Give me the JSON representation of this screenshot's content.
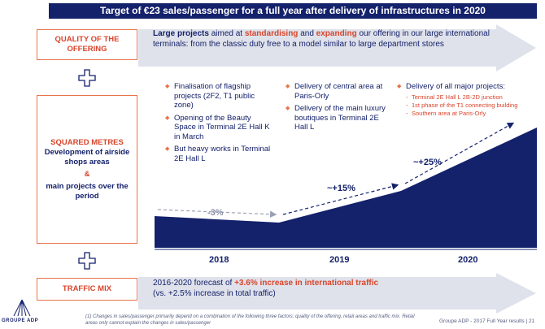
{
  "banner": {
    "title": "Target of €23 sales/passenger for a full year after delivery of infrastructures in 2020"
  },
  "quality": {
    "label": "QUALITY OF THE OFFERING",
    "text_1_bold": "Large projects",
    "text_2": " aimed at ",
    "text_3_red": "standardising",
    "text_4": " and ",
    "text_5_red": "expanding",
    "text_6": " our offering in our large international terminals: from the classic duty free to a model similar to large department stores"
  },
  "squared": {
    "label_red": "SQUARED METRES",
    "label_line2": "Development of airside shops areas",
    "label_amp": "&",
    "label_line3": "main projects over the period"
  },
  "col2018": {
    "items": [
      "Finalisation of flagship projects (2F2, T1 public zone)",
      "Opening of the Beauty Space in Terminal 2E Hall K in March",
      "But heavy works in Terminal 2E Hall L"
    ]
  },
  "col2019": {
    "items": [
      "Delivery of central area at Paris-Orly",
      "Delivery of the main luxury boutiques in Terminal 2E Hall L"
    ]
  },
  "col2020": {
    "main": "Delivery of all major projects:",
    "sub": [
      "Terminal 2E Hall L 2B-2D junction",
      "1st phase of the T1 connecting building",
      "Southern area at Paris-Orly"
    ]
  },
  "chart_data": {
    "type": "area",
    "categories": [
      "2018",
      "2019",
      "2020"
    ],
    "annotations": [
      "-3%",
      "~+15%",
      "~+25%"
    ],
    "title": "",
    "colors": {
      "area": "#14216b",
      "arrow": "#14216b",
      "grey_arrow": "#9aa0b4"
    }
  },
  "traffic": {
    "label": "TRAFFIC MIX",
    "text_1": "2016-2020 forecast of ",
    "text_2_red": "+3.6% increase in international traffic",
    "text_3": "(vs. +2.5% increase in total traffic)"
  },
  "footer": {
    "footnote": "(1) Changes in sales/passenger primarily depend on a combination of the following three factors: quality of the offering, retail areas and traffic mix. Retail areas only cannot explain the changes in sales/passenger",
    "right": "Groupe ADP - 2017 Full Year results | 21",
    "logo": "GROUPE ADP"
  },
  "colors": {
    "navy": "#14216b",
    "orange": "#e8734a",
    "red": "#d9442b",
    "arrow_grey": "#dfe2ea"
  }
}
